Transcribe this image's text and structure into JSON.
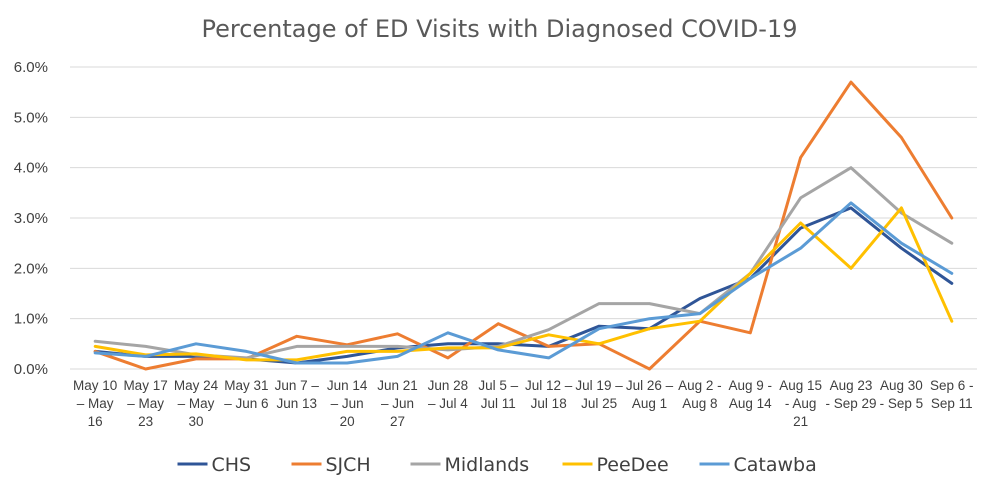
{
  "chart_data": {
    "type": "line",
    "title": "Percentage of ED Visits with Diagnosed COVID-19",
    "xlabel": "",
    "ylabel": "",
    "ylim": [
      0,
      6
    ],
    "y_ticks": [
      "0.0%",
      "1.0%",
      "2.0%",
      "3.0%",
      "4.0%",
      "5.0%",
      "6.0%"
    ],
    "grid": true,
    "legend_position": "bottom",
    "categories": [
      [
        "May 10",
        "– May",
        "16"
      ],
      [
        "May 17",
        "– May",
        "23"
      ],
      [
        "May 24",
        "– May",
        "30"
      ],
      [
        "May 31",
        "– Jun 6"
      ],
      [
        "Jun 7 –",
        "Jun 13"
      ],
      [
        "Jun 14",
        "– Jun",
        "20"
      ],
      [
        "Jun 21",
        "– Jun",
        "27"
      ],
      [
        "Jun 28",
        "– Jul 4"
      ],
      [
        "Jul 5 –",
        "Jul 11"
      ],
      [
        "Jul 12 –",
        "Jul 18"
      ],
      [
        "Jul 19 –",
        "Jul 25"
      ],
      [
        "Jul 26 –",
        "Aug 1"
      ],
      [
        "Aug 2 -",
        "Aug 8"
      ],
      [
        "Aug 9 -",
        "Aug 14"
      ],
      [
        "Aug 15",
        "- Aug",
        "21"
      ],
      [
        "Aug 23",
        "- Sep 29"
      ],
      [
        "Aug 30",
        "- Sep 5"
      ],
      [
        "Sep 6 -",
        "Sep 11"
      ]
    ],
    "series": [
      {
        "name": "CHS",
        "color": "#2f5597",
        "values": [
          0.35,
          0.25,
          0.25,
          0.2,
          0.12,
          0.25,
          0.42,
          0.5,
          0.5,
          0.45,
          0.85,
          0.8,
          1.4,
          1.8,
          2.8,
          3.2,
          2.4,
          1.7
        ]
      },
      {
        "name": "SJCH",
        "color": "#ed7d31",
        "values": [
          0.35,
          0.0,
          0.2,
          0.2,
          0.65,
          0.48,
          0.7,
          0.22,
          0.9,
          0.45,
          0.5,
          0.0,
          0.95,
          0.72,
          4.2,
          5.7,
          4.6,
          3.0
        ]
      },
      {
        "name": "Midlands",
        "color": "#a5a5a5",
        "values": [
          0.55,
          0.45,
          0.28,
          0.22,
          0.45,
          0.45,
          0.45,
          0.38,
          0.45,
          0.78,
          1.3,
          1.3,
          1.1,
          1.9,
          3.4,
          4.0,
          3.1,
          2.5
        ]
      },
      {
        "name": "PeeDee",
        "color": "#ffc000",
        "values": [
          0.45,
          0.28,
          0.3,
          0.18,
          0.18,
          0.35,
          0.35,
          0.42,
          0.42,
          0.68,
          0.5,
          0.8,
          0.95,
          1.9,
          2.9,
          2.0,
          3.2,
          0.95
        ]
      },
      {
        "name": "Catawba",
        "color": "#5b9bd5",
        "values": [
          0.32,
          0.25,
          0.5,
          0.35,
          0.12,
          0.12,
          0.25,
          0.72,
          0.38,
          0.22,
          0.8,
          1.0,
          1.1,
          1.8,
          2.4,
          3.3,
          2.5,
          1.9
        ]
      }
    ]
  }
}
